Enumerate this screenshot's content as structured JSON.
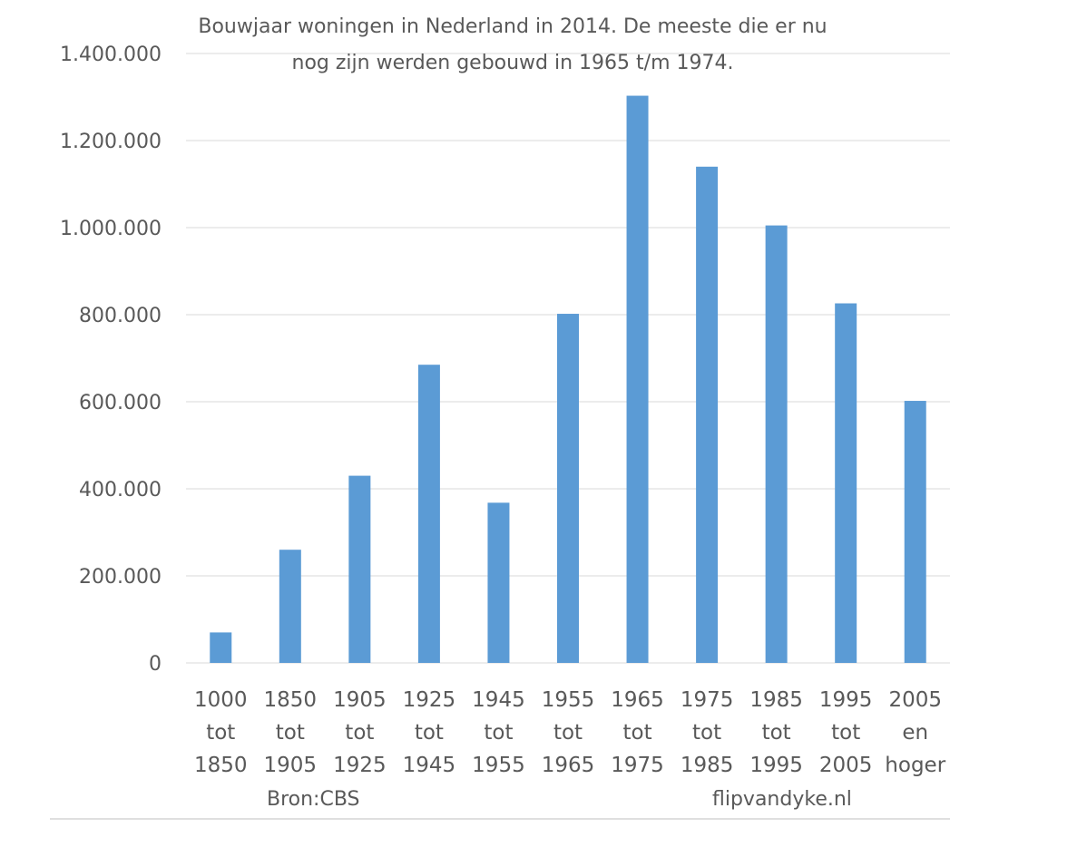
{
  "chart_data": {
    "type": "bar",
    "title_lines": [
      "Bouwjaar woningen in Nederland in 2014. De meeste die er nu",
      "nog zijn werden gebouwd in 1965 t/m 1974."
    ],
    "categories": [
      [
        "1000",
        "tot",
        "1850"
      ],
      [
        "1850",
        "tot",
        "1905"
      ],
      [
        "1905",
        "tot",
        "1925"
      ],
      [
        "1925",
        "tot",
        "1945"
      ],
      [
        "1945",
        "tot",
        "1955"
      ],
      [
        "1955",
        "tot",
        "1965"
      ],
      [
        "1965",
        "tot",
        "1975"
      ],
      [
        "1975",
        "tot",
        "1985"
      ],
      [
        "1985",
        "tot",
        "1995"
      ],
      [
        "1995",
        "tot",
        "2005"
      ],
      [
        "2005",
        "en",
        "hoger"
      ]
    ],
    "values": [
      70000,
      260000,
      430000,
      685000,
      368000,
      802000,
      1303000,
      1140000,
      1005000,
      826000,
      602000
    ],
    "ylim": [
      0,
      1400000
    ],
    "yticks": [
      0,
      200000,
      400000,
      600000,
      800000,
      1000000,
      1200000,
      1400000
    ],
    "ytick_labels": [
      "0",
      "200.000",
      "400.000",
      "600.000",
      "800.000",
      "1.000.000",
      "1.200.000",
      "1.400.000"
    ],
    "grid": true,
    "bar_color": "#5b9bd5",
    "source_note": "Bron:CBS",
    "credit_note": "flipvandyke.nl"
  }
}
